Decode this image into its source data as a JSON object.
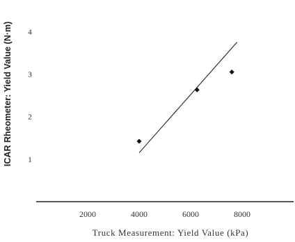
{
  "chart_data": {
    "type": "scatter",
    "xlabel": "Truck Measurement: Yield Value (kPa)",
    "ylabel": "ICAR Rheometer: Yield Value (N·m)",
    "xlim": [
      0,
      10000
    ],
    "ylim": [
      0,
      4.4
    ],
    "x_ticks": [
      2000,
      4000,
      6000,
      8000
    ],
    "x_tick_labels": [
      "2000",
      "4000",
      "6000",
      "8000"
    ],
    "y_ticks": [
      1,
      2,
      3,
      4
    ],
    "y_tick_labels": [
      "1",
      "2",
      "3",
      "4"
    ],
    "points": [
      {
        "x": 4000,
        "y": 1.42
      },
      {
        "x": 6250,
        "y": 2.63
      },
      {
        "x": 7600,
        "y": 3.05
      }
    ],
    "trendline": {
      "x": [
        4000,
        7800
      ],
      "y": [
        1.15,
        3.75
      ]
    },
    "grid": false,
    "legend": "none"
  }
}
